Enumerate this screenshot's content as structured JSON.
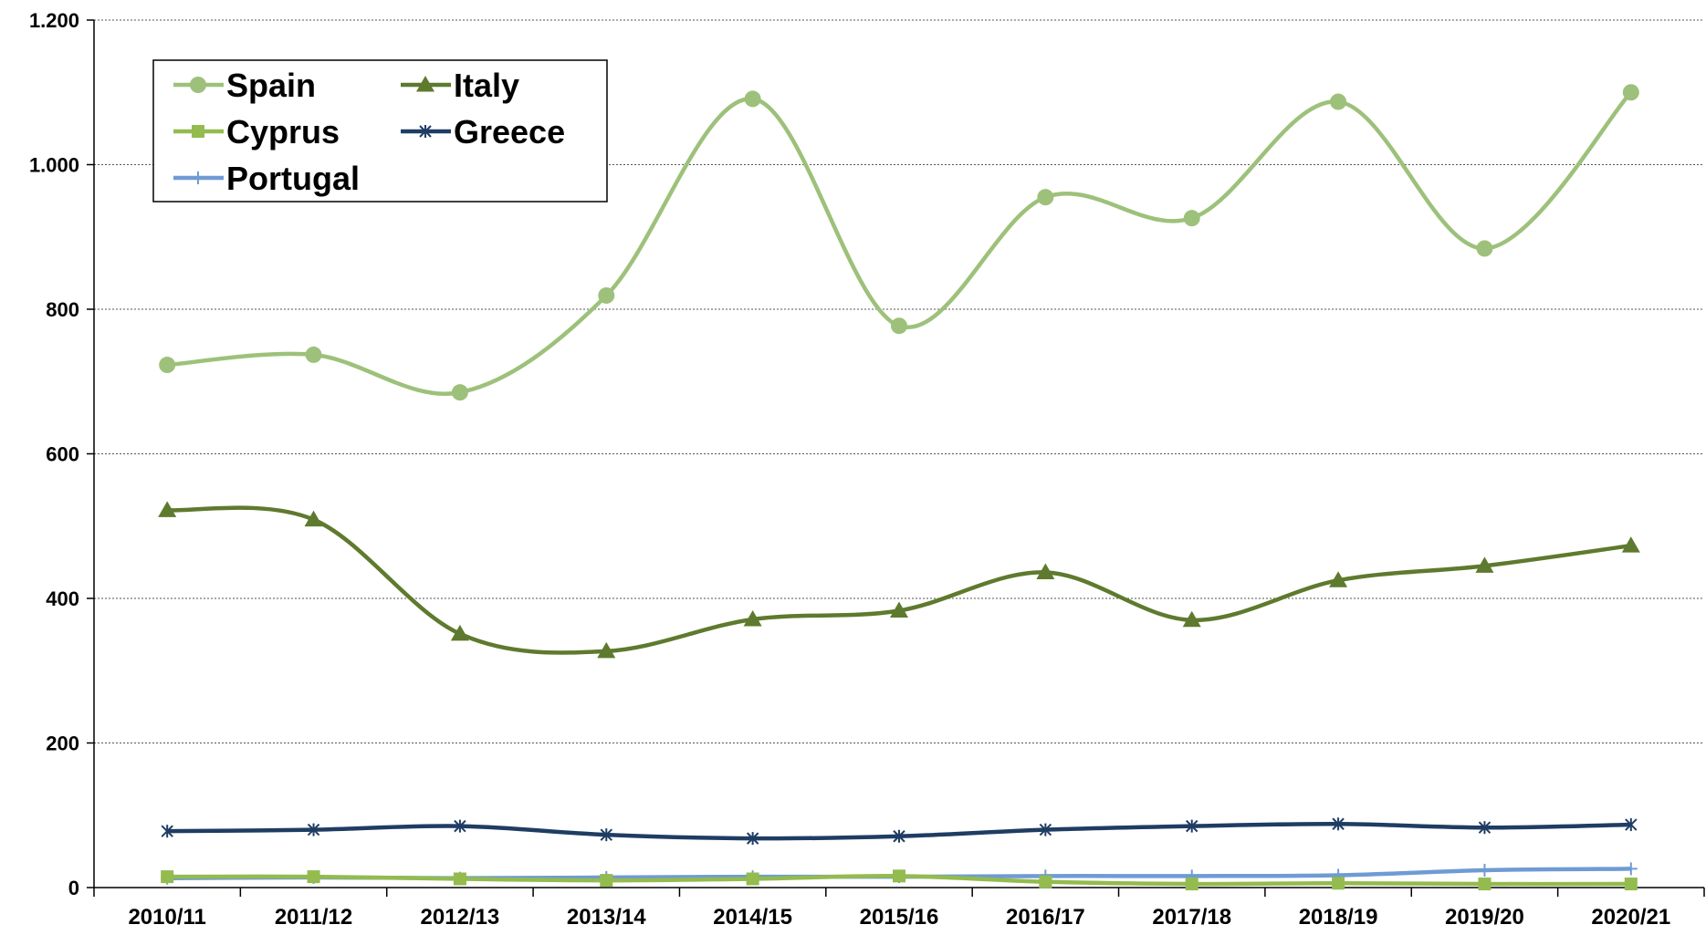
{
  "chart_data": {
    "type": "line",
    "title": "",
    "xlabel": "",
    "ylabel": "",
    "categories": [
      "2010/11",
      "2011/12",
      "2012/13",
      "2013/14",
      "2014/15",
      "2015/16",
      "2016/17",
      "2017/18",
      "2018/19",
      "2019/20",
      "2020/21"
    ],
    "ylim": [
      0,
      1200
    ],
    "yticks": [
      0,
      200,
      400,
      600,
      800,
      1000,
      1200
    ],
    "ytick_labels": [
      "0",
      "200",
      "400",
      "600",
      "800",
      "1.000",
      "1.200"
    ],
    "grid": "horizontal dotted",
    "legend_position": "top-left",
    "smooth": true,
    "series": [
      {
        "name": "Spain",
        "color": "#9dc17a",
        "marker": "circle",
        "values": [
          723,
          737,
          685,
          819,
          1091,
          777,
          955,
          926,
          1087,
          884,
          1100
        ]
      },
      {
        "name": "Italy",
        "color": "#5e7a2e",
        "marker": "triangle",
        "values": [
          522,
          509,
          351,
          327,
          371,
          383,
          436,
          370,
          425,
          445,
          473
        ]
      },
      {
        "name": "Cyprus",
        "color": "#93bb4e",
        "marker": "square",
        "values": [
          15,
          15,
          12,
          10,
          12,
          16,
          8,
          5,
          6,
          5,
          5
        ]
      },
      {
        "name": "Greece",
        "color": "#1f3d63",
        "marker": "star",
        "values": [
          78,
          80,
          85,
          73,
          68,
          71,
          80,
          85,
          88,
          83,
          87
        ]
      },
      {
        "name": "Portugal",
        "color": "#6f9bd4",
        "marker": "plus",
        "values": [
          13,
          14,
          13,
          14,
          15,
          15,
          16,
          16,
          17,
          24,
          26
        ]
      }
    ]
  }
}
